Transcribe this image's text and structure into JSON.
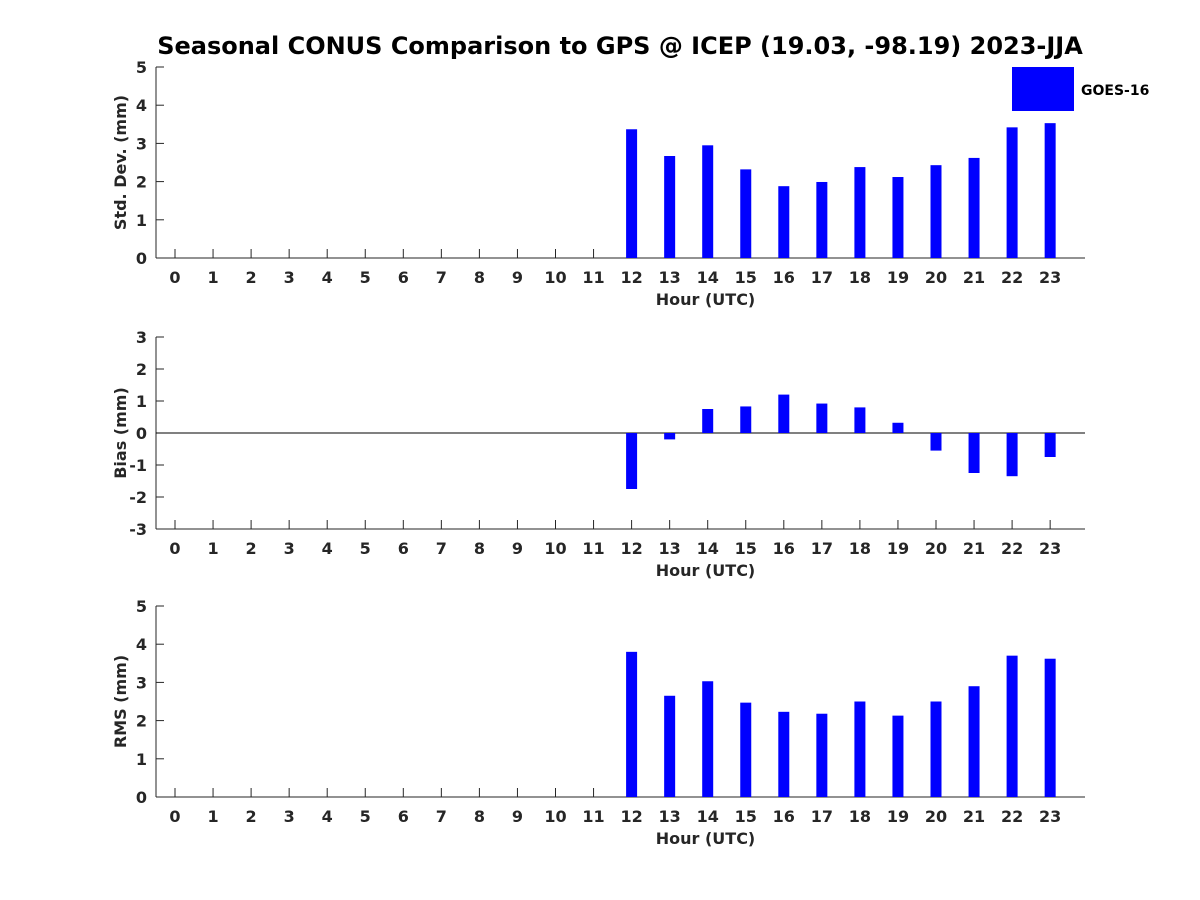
{
  "title": "Seasonal CONUS Comparison to GPS @ ICEP (19.03, -98.19) 2023-JJA",
  "colors": {
    "bar": "#0000ff",
    "axis": "#262626",
    "zero_line": "#000000"
  },
  "chart_data": [
    {
      "type": "bar",
      "title": "Seasonal CONUS Comparison to GPS @ ICEP (19.03, -98.19) 2023-JJA",
      "xlabel": "Hour (UTC)",
      "ylabel": "Std. Dev. (mm)",
      "ylim": [
        0,
        5
      ],
      "yticks": [
        "0",
        "1",
        "2",
        "3",
        "4",
        "5"
      ],
      "categories": [
        "0",
        "1",
        "2",
        "3",
        "4",
        "5",
        "6",
        "7",
        "8",
        "9",
        "10",
        "11",
        "12",
        "13",
        "14",
        "15",
        "16",
        "17",
        "18",
        "19",
        "20",
        "21",
        "22",
        "23"
      ],
      "series": [
        {
          "name": "GOES-16",
          "values": [
            null,
            null,
            null,
            null,
            null,
            null,
            null,
            null,
            null,
            null,
            null,
            null,
            3.37,
            2.67,
            2.95,
            2.32,
            1.88,
            1.99,
            2.38,
            2.12,
            2.43,
            2.62,
            3.42,
            3.53
          ]
        }
      ],
      "legend": {
        "entries": [
          "GOES-16"
        ],
        "placement": "top-right"
      }
    },
    {
      "type": "bar",
      "xlabel": "Hour (UTC)",
      "ylabel": "Bias (mm)",
      "ylim": [
        -3,
        3
      ],
      "yticks": [
        "-3",
        "-2",
        "-1",
        "0",
        "1",
        "2",
        "3"
      ],
      "categories": [
        "0",
        "1",
        "2",
        "3",
        "4",
        "5",
        "6",
        "7",
        "8",
        "9",
        "10",
        "11",
        "12",
        "13",
        "14",
        "15",
        "16",
        "17",
        "18",
        "19",
        "20",
        "21",
        "22",
        "23"
      ],
      "zero_line": true,
      "series": [
        {
          "name": "GOES-16",
          "values": [
            null,
            null,
            null,
            null,
            null,
            null,
            null,
            null,
            null,
            null,
            null,
            null,
            -1.75,
            -0.2,
            0.75,
            0.83,
            1.2,
            0.92,
            0.8,
            0.32,
            -0.55,
            -1.25,
            -1.35,
            -0.75
          ]
        }
      ]
    },
    {
      "type": "bar",
      "xlabel": "Hour (UTC)",
      "ylabel": "RMS (mm)",
      "ylim": [
        0,
        5
      ],
      "yticks": [
        "0",
        "1",
        "2",
        "3",
        "4",
        "5"
      ],
      "categories": [
        "0",
        "1",
        "2",
        "3",
        "4",
        "5",
        "6",
        "7",
        "8",
        "9",
        "10",
        "11",
        "12",
        "13",
        "14",
        "15",
        "16",
        "17",
        "18",
        "19",
        "20",
        "21",
        "22",
        "23"
      ],
      "series": [
        {
          "name": "GOES-16",
          "values": [
            null,
            null,
            null,
            null,
            null,
            null,
            null,
            null,
            null,
            null,
            null,
            null,
            3.8,
            2.65,
            3.03,
            2.47,
            2.23,
            2.18,
            2.5,
            2.13,
            2.5,
            2.9,
            3.7,
            3.62
          ]
        }
      ]
    }
  ]
}
